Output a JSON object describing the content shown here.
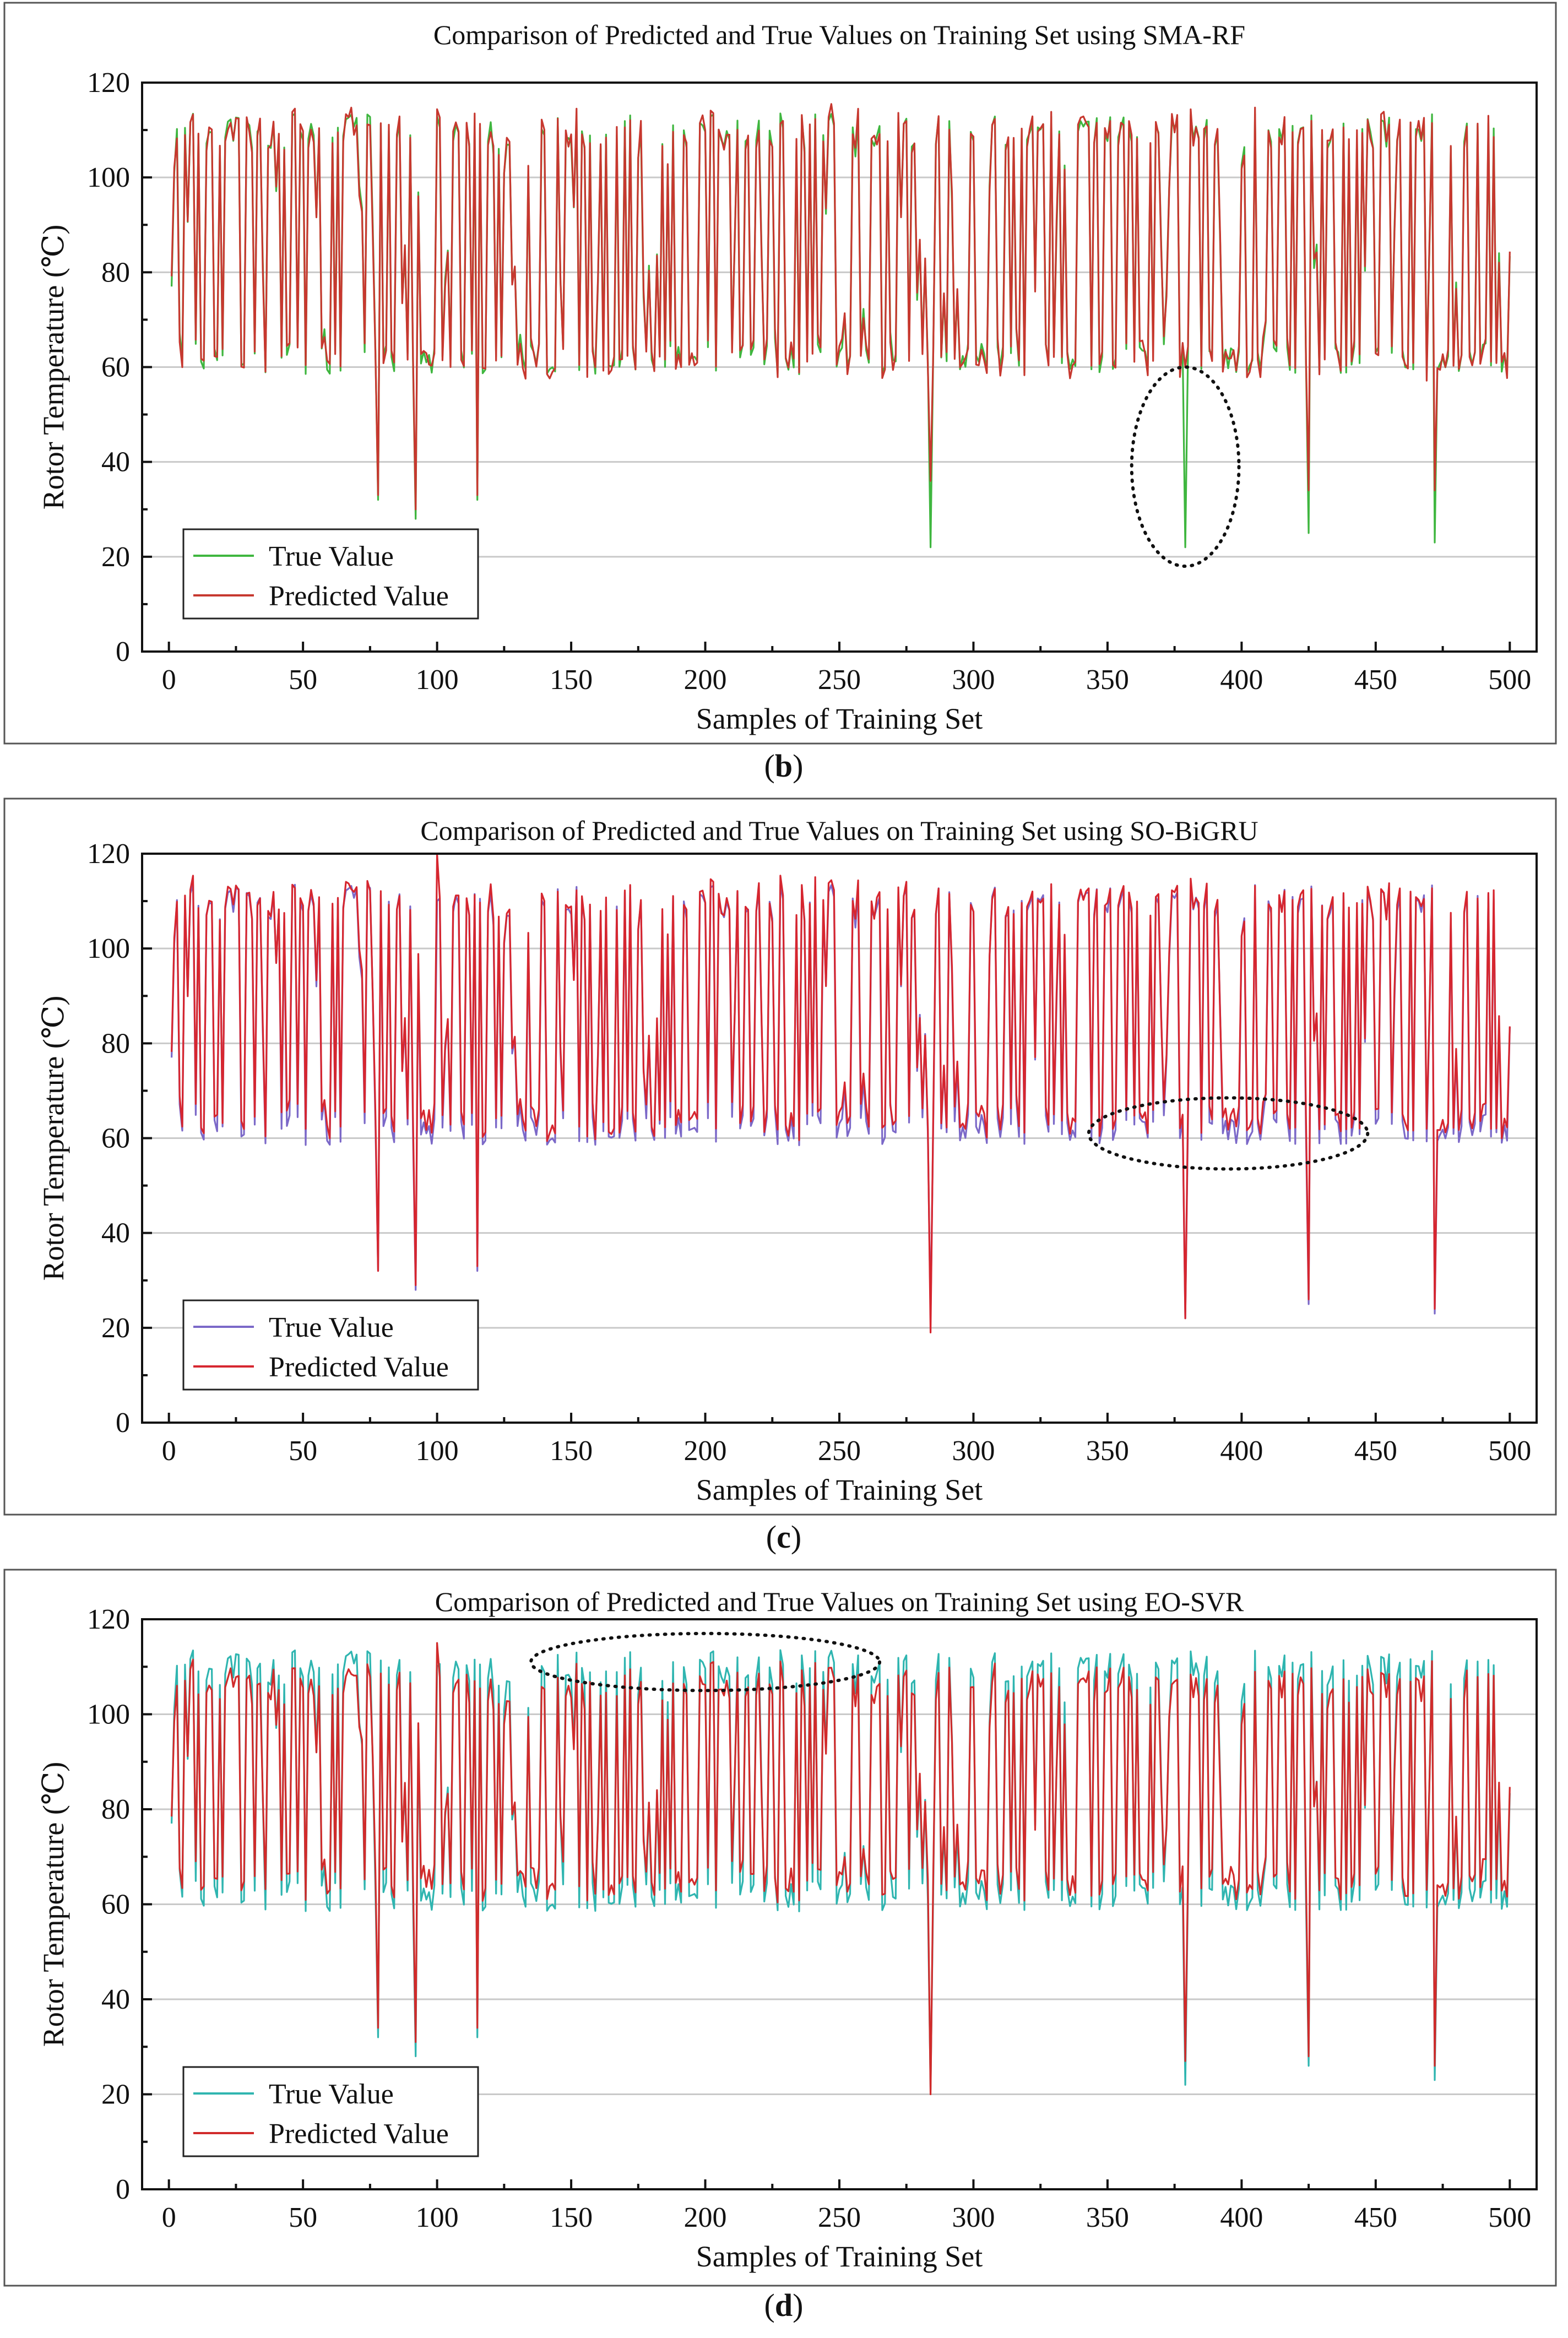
{
  "figure": {
    "captions": [
      "b",
      "c",
      "d"
    ]
  },
  "chart_data": [
    {
      "type": "line",
      "panel_id": "b",
      "title": "Comparison of Predicted and True Values on Training Set using SMA-RF",
      "xlabel": "Samples of Training Set",
      "ylabel": "Rotor Temperature (℃)",
      "xlim": [
        -10,
        510
      ],
      "ylim": [
        0,
        120
      ],
      "xticks": [
        0,
        50,
        100,
        150,
        200,
        250,
        300,
        350,
        400,
        450,
        500
      ],
      "yticks": [
        0,
        20,
        40,
        60,
        80,
        100,
        120
      ],
      "legend_position": "bottom-left",
      "series": [
        {
          "name": "True Value",
          "color": "#3fb63f"
        },
        {
          "name": "Predicted Value",
          "color": "#c7382f"
        }
      ],
      "highlight_region": {
        "x_center": 379,
        "y_center": 39,
        "x_radius": 20,
        "y_radius": 21
      },
      "outlier_dips": [
        {
          "x": 78,
          "true": 32,
          "predicted": 33
        },
        {
          "x": 92,
          "true": 28,
          "predicted": 30
        },
        {
          "x": 115,
          "true": 32,
          "predicted": 33
        },
        {
          "x": 284,
          "true": 22,
          "predicted": 36
        },
        {
          "x": 379,
          "true": 22,
          "predicted": 60
        },
        {
          "x": 425,
          "true": 25,
          "predicted": 34
        },
        {
          "x": 472,
          "true": 23,
          "predicted": 34
        }
      ],
      "generator": {
        "seed": 4207,
        "n": 500,
        "pred_noise": 2.2,
        "pred_bias": 0,
        "offset_high": 0,
        "offset_low": 0,
        "lag": 0
      }
    },
    {
      "type": "line",
      "panel_id": "c",
      "title": "Comparison of Predicted and True Values on Training Set using SO-BiGRU",
      "xlabel": "Samples of Training Set",
      "ylabel": "Rotor Temperature (℃)",
      "xlim": [
        -10,
        510
      ],
      "ylim": [
        0,
        120
      ],
      "xticks": [
        0,
        50,
        100,
        150,
        200,
        250,
        300,
        350,
        400,
        450,
        500
      ],
      "yticks": [
        0,
        20,
        40,
        60,
        80,
        100,
        120
      ],
      "legend_position": "bottom-left",
      "series": [
        {
          "name": "True Value",
          "color": "#7b68c8"
        },
        {
          "name": "Predicted Value",
          "color": "#d6262f"
        }
      ],
      "highlight_region": {
        "x_center": 395,
        "y_center": 61,
        "x_radius": 52,
        "y_radius": 7.5
      },
      "outlier_dips": [
        {
          "x": 78,
          "true": 32,
          "predicted": 32
        },
        {
          "x": 92,
          "true": 28,
          "predicted": 29
        },
        {
          "x": 100,
          "true": 110,
          "predicted": 120
        },
        {
          "x": 115,
          "true": 32,
          "predicted": 33
        },
        {
          "x": 284,
          "true": 22,
          "predicted": 19
        },
        {
          "x": 379,
          "true": 22,
          "predicted": 22
        },
        {
          "x": 425,
          "true": 25,
          "predicted": 26
        },
        {
          "x": 472,
          "true": 23,
          "predicted": 24
        }
      ],
      "generator": {
        "seed": 4207,
        "n": 500,
        "pred_noise": 1.4,
        "pred_bias": 0.6,
        "offset_high": 0,
        "offset_low": 1.5,
        "lag": 0
      }
    },
    {
      "type": "line",
      "panel_id": "d",
      "title": "Comparison of Predicted and True Values on Training Set using EO-SVR",
      "xlabel": "Samples of Training Set",
      "ylabel": "Rotor Temperature (℃)",
      "xlim": [
        -10,
        510
      ],
      "ylim": [
        0,
        120
      ],
      "xticks": [
        0,
        50,
        100,
        150,
        200,
        250,
        300,
        350,
        400,
        450,
        500
      ],
      "yticks": [
        0,
        20,
        40,
        60,
        80,
        100,
        120
      ],
      "legend_position": "bottom-left",
      "series": [
        {
          "name": "True Value",
          "color": "#2fb5b0"
        },
        {
          "name": "Predicted Value",
          "color": "#d12b2b"
        }
      ],
      "highlight_region": {
        "x_center": 200,
        "y_center": 111,
        "x_radius": 65,
        "y_radius": 6
      },
      "outlier_dips": [
        {
          "x": 78,
          "true": 32,
          "predicted": 34
        },
        {
          "x": 92,
          "true": 28,
          "predicted": 31
        },
        {
          "x": 100,
          "true": 110,
          "predicted": 115
        },
        {
          "x": 115,
          "true": 32,
          "predicted": 34
        },
        {
          "x": 284,
          "true": 21,
          "predicted": 20
        },
        {
          "x": 379,
          "true": 22,
          "predicted": 27
        },
        {
          "x": 425,
          "true": 26,
          "predicted": 28
        },
        {
          "x": 472,
          "true": 23,
          "predicted": 26
        }
      ],
      "generator": {
        "seed": 4207,
        "n": 500,
        "pred_noise": 1.6,
        "pred_bias": 0,
        "offset_high": -3.5,
        "offset_low": 3.2,
        "lag": 0
      }
    }
  ]
}
